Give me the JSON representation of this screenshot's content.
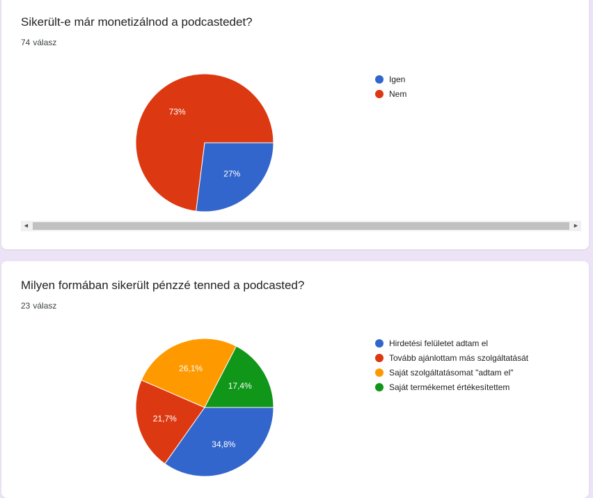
{
  "questions": [
    {
      "title": "Sikerült-e már monetizálnod a podcastedet?",
      "response_count": "74",
      "response_label": "válasz",
      "chart_data": {
        "type": "pie",
        "categories": [
          "Igen",
          "Nem"
        ],
        "values": [
          27,
          73
        ],
        "labels": [
          "27%",
          "73%"
        ],
        "colors": [
          "#3366cc",
          "#dc3912"
        ],
        "legend_position": "right"
      }
    },
    {
      "title": "Milyen formában sikerült pénzzé tenned a podcasted?",
      "response_count": "23",
      "response_label": "válasz",
      "chart_data": {
        "type": "pie",
        "categories": [
          "Hirdetési felületet adtam el",
          "Tovább ajánlottam más szolgáltatását",
          "Saját szolgáltatásomat \"adtam el\"",
          "Saját termékemet értékesítettem"
        ],
        "values": [
          34.8,
          21.7,
          26.1,
          17.4
        ],
        "labels": [
          "34,8%",
          "21,7%",
          "26,1%",
          "17,4%"
        ],
        "colors": [
          "#3366cc",
          "#dc3912",
          "#ff9900",
          "#109618"
        ],
        "legend_position": "right"
      }
    }
  ],
  "scrollbar": {
    "left_arrow": "◀",
    "right_arrow": "▶"
  }
}
